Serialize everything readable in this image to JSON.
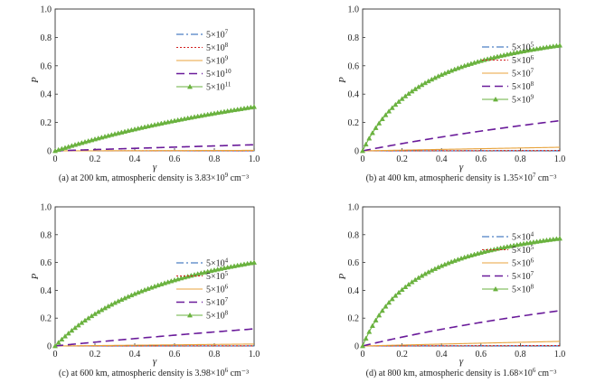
{
  "chart_data": [
    {
      "type": "line",
      "caption": {
        "pre": "(a) at 200 km, atmospheric density is 3.83×10",
        "exp": "9",
        "post": " cm⁻³"
      },
      "xlabel": "γ",
      "ylabel": "P",
      "xlim": [
        0,
        1.0
      ],
      "ylim": [
        0,
        1.0
      ],
      "xticks": [
        "0",
        "0.2",
        "0.4",
        "0.6",
        "0.8",
        "1.0"
      ],
      "yticks": [
        "0",
        "0.2",
        "0.4",
        "0.6",
        "0.8",
        "1.0"
      ],
      "grid": false,
      "legend_position": "top-right",
      "series": [
        {
          "name": {
            "base": "5×10",
            "exp": "7"
          },
          "color": "#1f5fb4",
          "style": "dashdot",
          "k": 3e-05
        },
        {
          "name": {
            "base": "5×10",
            "exp": "8"
          },
          "color": "#d21f1f",
          "style": "dotted",
          "k": 0.0003
        },
        {
          "name": {
            "base": "5×10",
            "exp": "9"
          },
          "color": "#e8a33c",
          "style": "solid",
          "k": 0.0035
        },
        {
          "name": {
            "base": "5×10",
            "exp": "10"
          },
          "color": "#6a1b9a",
          "style": "dashed",
          "k": 0.045
        },
        {
          "name": {
            "base": "5×10",
            "exp": "11"
          },
          "color": "#6ab23f",
          "style": "triangle",
          "k": 0.45
        }
      ]
    },
    {
      "type": "line",
      "caption": {
        "pre": "(b) at 400 km, atmospheric density is 1.35×10",
        "exp": "7",
        "post": " cm⁻³"
      },
      "xlabel": "γ",
      "ylabel": "P",
      "xlim": [
        0,
        1.0
      ],
      "ylim": [
        0,
        1.0
      ],
      "xticks": [
        "0",
        "0.2",
        "0.4",
        "0.6",
        "0.8",
        "1.0"
      ],
      "yticks": [
        "0",
        "0.2",
        "0.4",
        "0.6",
        "0.8",
        "1.0"
      ],
      "grid": false,
      "legend_position": "right",
      "series": [
        {
          "name": {
            "base": "5×10",
            "exp": "5"
          },
          "color": "#1f5fb4",
          "style": "dashdot",
          "k": 0.0002
        },
        {
          "name": {
            "base": "5×10",
            "exp": "6"
          },
          "color": "#d21f1f",
          "style": "dotted",
          "k": 0.0025
        },
        {
          "name": {
            "base": "5×10",
            "exp": "7"
          },
          "color": "#e8a33c",
          "style": "solid",
          "k": 0.026
        },
        {
          "name": {
            "base": "5×10",
            "exp": "8"
          },
          "color": "#6a1b9a",
          "style": "dashed",
          "k": 0.27
        },
        {
          "name": {
            "base": "5×10",
            "exp": "9"
          },
          "color": "#6ab23f",
          "style": "triangle",
          "k": 2.9
        }
      ]
    },
    {
      "type": "line",
      "caption": {
        "pre": "(c) at 600 km, atmospheric density is 3.98×10",
        "exp": "6",
        "post": " cm⁻³"
      },
      "xlabel": "γ",
      "ylabel": "P",
      "xlim": [
        0,
        1.0
      ],
      "ylim": [
        0,
        1.0
      ],
      "xticks": [
        "0",
        "0.2",
        "0.4",
        "0.6",
        "0.8",
        "1.0"
      ],
      "yticks": [
        "0",
        "0.2",
        "0.4",
        "0.6",
        "0.8",
        "1.0"
      ],
      "grid": false,
      "legend_position": "right",
      "series": [
        {
          "name": {
            "base": "5×10",
            "exp": "4"
          },
          "color": "#1f5fb4",
          "style": "dashdot",
          "k": 0.0001
        },
        {
          "name": {
            "base": "5×10",
            "exp": "5"
          },
          "color": "#d21f1f",
          "style": "dotted",
          "k": 0.0013
        },
        {
          "name": {
            "base": "5×10",
            "exp": "6"
          },
          "color": "#e8a33c",
          "style": "solid",
          "k": 0.014
        },
        {
          "name": {
            "base": "5×10",
            "exp": "7"
          },
          "color": "#6a1b9a",
          "style": "dashed",
          "k": 0.14
        },
        {
          "name": {
            "base": "5×10",
            "exp": "8"
          },
          "color": "#6ab23f",
          "style": "triangle",
          "k": 1.5
        }
      ]
    },
    {
      "type": "line",
      "caption": {
        "pre": "(d) at 800 km, atmospheric density is 1.68×10",
        "exp": "6",
        "post": " cm⁻³"
      },
      "xlabel": "γ",
      "ylabel": "P",
      "xlim": [
        0,
        1.0
      ],
      "ylim": [
        0,
        1.0
      ],
      "xticks": [
        "0",
        "0.2",
        "0.4",
        "0.6",
        "0.8",
        "1.0"
      ],
      "yticks": [
        "0",
        "0.2",
        "0.4",
        "0.6",
        "0.8",
        "1.0"
      ],
      "grid": false,
      "legend_position": "right",
      "series": [
        {
          "name": {
            "base": "5×10",
            "exp": "4"
          },
          "color": "#1f5fb4",
          "style": "dashdot",
          "k": 0.00034
        },
        {
          "name": {
            "base": "5×10",
            "exp": "5"
          },
          "color": "#d21f1f",
          "style": "dotted",
          "k": 0.0032
        },
        {
          "name": {
            "base": "5×10",
            "exp": "6"
          },
          "color": "#e8a33c",
          "style": "solid",
          "k": 0.034
        },
        {
          "name": {
            "base": "5×10",
            "exp": "7"
          },
          "color": "#6a1b9a",
          "style": "dashed",
          "k": 0.34
        },
        {
          "name": {
            "base": "5×10",
            "exp": "8"
          },
          "color": "#6ab23f",
          "style": "triangle",
          "k": 3.4
        }
      ]
    }
  ]
}
